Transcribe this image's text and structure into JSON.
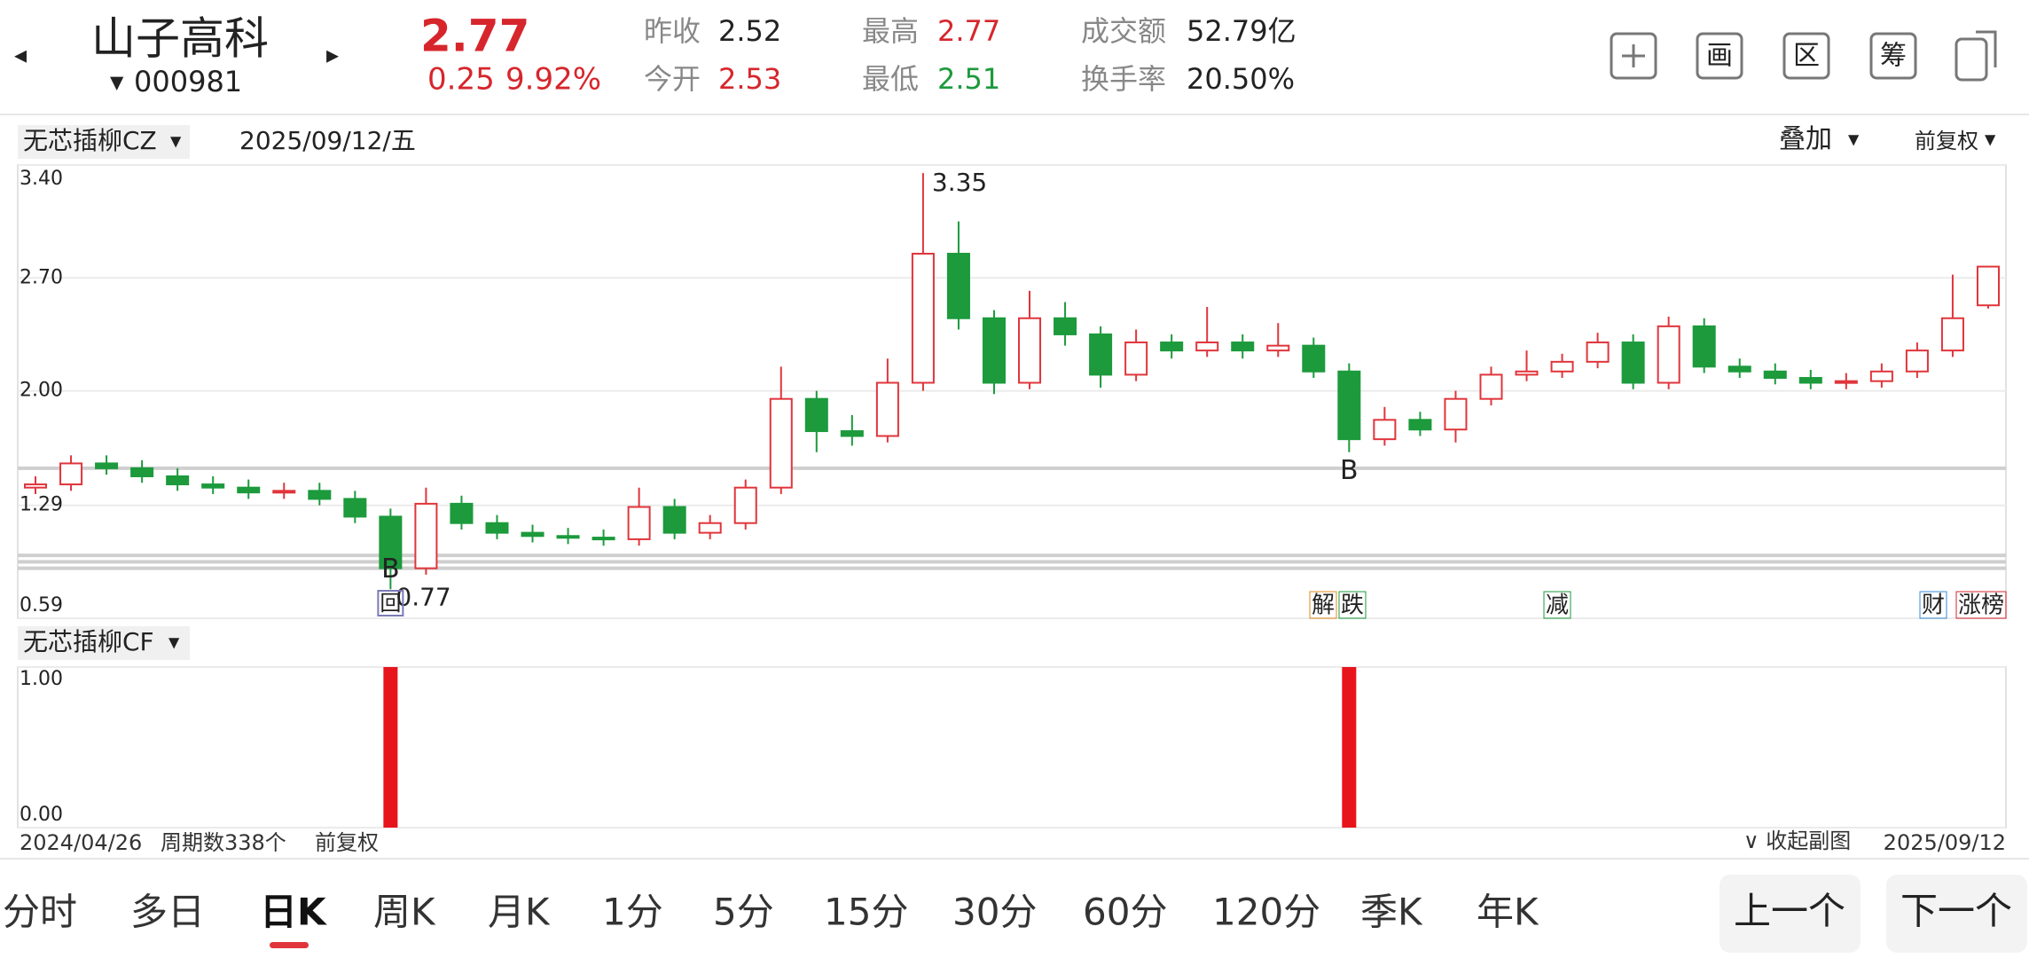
{
  "header": {
    "name": "山子高科",
    "code": "000981",
    "price": "2.77",
    "change": "0.25",
    "change_pct": "9.92%",
    "stats": [
      {
        "label": "昨收",
        "value": "2.52"
      },
      {
        "label": "今开",
        "value": "2.53"
      },
      {
        "label": "最高",
        "value": "2.77"
      },
      {
        "label": "最低",
        "value": "2.51"
      },
      {
        "label": "成交额",
        "value": "52.79亿"
      },
      {
        "label": "换手率",
        "value": "20.50%"
      }
    ],
    "tools": [
      "画",
      "区",
      "筹"
    ]
  },
  "panel": {
    "indicator": "无芯插柳CZ",
    "date": "2025/09/12/五",
    "overlay": "叠加",
    "adjust": "前复权"
  },
  "chart_data": [
    {
      "type": "candlestick",
      "open": [
        1.4,
        1.42,
        1.55,
        1.52,
        1.47,
        1.42,
        1.4,
        1.37,
        1.38,
        1.33,
        1.22,
        0.9,
        1.3,
        1.18,
        1.12,
        1.1,
        1.09,
        1.08,
        1.28,
        1.12,
        1.18,
        1.4,
        1.95,
        1.75,
        1.72,
        2.05,
        2.85,
        2.45,
        2.05,
        2.45,
        2.35,
        2.1,
        2.3,
        2.25,
        2.3,
        2.25,
        2.28,
        2.12,
        1.7,
        1.82,
        1.76,
        1.95,
        2.1,
        2.12,
        2.18,
        2.3,
        2.05,
        2.4,
        2.15,
        2.12,
        2.08,
        2.05,
        2.06,
        2.12,
        2.25,
        2.53
      ],
      "high": [
        1.47,
        1.6,
        1.6,
        1.57,
        1.52,
        1.47,
        1.45,
        1.43,
        1.43,
        1.38,
        1.27,
        1.4,
        1.35,
        1.23,
        1.17,
        1.15,
        1.14,
        1.4,
        1.33,
        1.23,
        1.45,
        2.15,
        2.0,
        1.85,
        2.2,
        3.35,
        3.05,
        2.5,
        2.62,
        2.55,
        2.4,
        2.38,
        2.35,
        2.52,
        2.35,
        2.42,
        2.33,
        2.17,
        1.9,
        1.87,
        2.0,
        2.15,
        2.25,
        2.23,
        2.36,
        2.35,
        2.46,
        2.45,
        2.2,
        2.17,
        2.13,
        2.11,
        2.17,
        2.3,
        2.72,
        2.77
      ],
      "low": [
        1.36,
        1.38,
        1.48,
        1.43,
        1.38,
        1.36,
        1.33,
        1.33,
        1.29,
        1.18,
        0.77,
        0.86,
        1.14,
        1.08,
        1.06,
        1.05,
        1.04,
        1.04,
        1.08,
        1.08,
        1.14,
        1.36,
        1.62,
        1.66,
        1.68,
        2.0,
        2.38,
        1.98,
        2.01,
        2.28,
        2.02,
        2.06,
        2.2,
        2.21,
        2.2,
        2.21,
        2.08,
        1.62,
        1.66,
        1.72,
        1.68,
        1.91,
        2.06,
        2.08,
        2.14,
        2.01,
        2.01,
        2.11,
        2.08,
        2.04,
        2.01,
        2.01,
        2.02,
        2.08,
        2.21,
        2.51
      ],
      "close": [
        1.42,
        1.55,
        1.52,
        1.47,
        1.42,
        1.4,
        1.37,
        1.38,
        1.33,
        1.22,
        0.9,
        1.3,
        1.18,
        1.12,
        1.1,
        1.09,
        1.08,
        1.28,
        1.12,
        1.18,
        1.4,
        1.95,
        1.75,
        1.72,
        2.05,
        2.85,
        2.45,
        2.05,
        2.45,
        2.35,
        2.1,
        2.3,
        2.25,
        2.3,
        2.25,
        2.28,
        2.12,
        1.7,
        1.82,
        1.76,
        1.95,
        2.1,
        2.12,
        2.18,
        2.3,
        2.05,
        2.4,
        2.15,
        2.12,
        2.08,
        2.05,
        2.06,
        2.12,
        2.25,
        2.45,
        2.77
      ],
      "up_color": "#e0353b",
      "down_color": "#1c9a3c",
      "ylim": [
        0.59,
        3.4
      ],
      "yticks": [
        0.59,
        1.29,
        {
          "value": 2.0,
          "label": "2.00"
        },
        {
          "value": 2.7,
          "label": "2.70"
        },
        {
          "value": 3.4,
          "label": "3.40"
        }
      ],
      "grid": true,
      "levels": [
        1.52,
        0.98,
        0.94,
        0.9
      ],
      "peak_label": "3.35",
      "trough_label": "0.77",
      "signal_marker": "B",
      "revisit_marker": "回",
      "tags": [
        {
          "text": "解",
          "color": "#e08a1e"
        },
        {
          "text": "跌",
          "color": "#1c9a3c"
        },
        {
          "text": "减",
          "color": "#1c9a3c"
        },
        {
          "text": "财",
          "color": "#3a8ad6"
        },
        {
          "text": "涨榜",
          "color": "#d6262c"
        }
      ]
    },
    {
      "type": "bar",
      "title": "无芯插柳CF",
      "values": [
        0,
        0,
        0,
        0,
        0,
        0,
        0,
        0,
        0,
        0,
        1,
        0,
        0,
        0,
        0,
        0,
        0,
        0,
        0,
        0,
        0,
        0,
        0,
        0,
        0,
        0,
        0,
        0,
        0,
        0,
        0,
        0,
        0,
        0,
        0,
        0,
        0,
        1,
        0,
        0,
        0,
        0,
        0,
        0,
        0,
        0,
        0,
        0,
        0,
        0,
        0,
        0,
        0,
        0,
        0,
        0
      ],
      "color": "#e8141c",
      "ylim": [
        0,
        1
      ],
      "yticks": [
        {
          "value": 0,
          "label": "0.00"
        },
        {
          "value": 1,
          "label": "1.00"
        }
      ]
    }
  ],
  "footer": {
    "start": "2024/04/26",
    "periods": "周期数338个",
    "adjust": "前复权",
    "collapse": "∨ 收起副图",
    "end": "2025/09/12"
  },
  "tabs": [
    "分时",
    "多日",
    "日K",
    "周K",
    "月K",
    "1分",
    "5分",
    "15分",
    "30分",
    "60分",
    "120分",
    "季K",
    "年K"
  ],
  "buttons": [
    "上一个",
    "下一个"
  ]
}
